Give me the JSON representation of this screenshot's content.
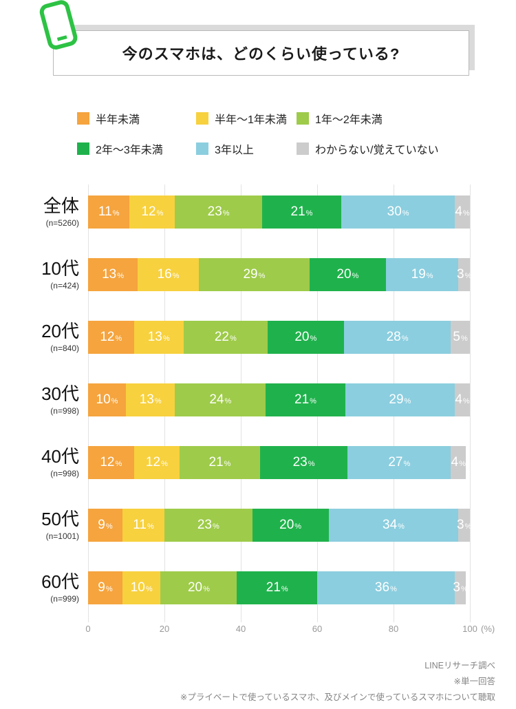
{
  "header": {
    "title": "今のスマホは、どのくらい使っている?"
  },
  "legend": [
    {
      "label": "半年未満",
      "color": "#F5A43E"
    },
    {
      "label": "半年〜1年未満",
      "color": "#F7D13E"
    },
    {
      "label": "1年〜2年未満",
      "color": "#9ECB4A"
    },
    {
      "label": "2年〜3年未満",
      "color": "#1FB24C"
    },
    {
      "label": "3年以上",
      "color": "#8BCEDF"
    },
    {
      "label": "わからない/覚えていない",
      "color": "#CCCCCC"
    }
  ],
  "chart_data": {
    "type": "bar",
    "orientation": "horizontal",
    "stacked": true,
    "title": "今のスマホは、どのくらい使っている?",
    "categories": [
      "全体",
      "10代",
      "20代",
      "30代",
      "40代",
      "50代",
      "60代"
    ],
    "sample_sizes": [
      "(n=5260)",
      "(n=424)",
      "(n=840)",
      "(n=998)",
      "(n=998)",
      "(n=1001)",
      "(n=999)"
    ],
    "series": [
      {
        "name": "半年未満",
        "color": "#F5A43E",
        "values": [
          11,
          13,
          12,
          10,
          12,
          9,
          9
        ]
      },
      {
        "name": "半年〜1年未満",
        "color": "#F7D13E",
        "values": [
          12,
          16,
          13,
          13,
          12,
          11,
          10
        ]
      },
      {
        "name": "1年〜2年未満",
        "color": "#9ECB4A",
        "values": [
          23,
          29,
          22,
          24,
          21,
          23,
          20
        ]
      },
      {
        "name": "2年〜3年未満",
        "color": "#1FB24C",
        "values": [
          21,
          20,
          20,
          21,
          23,
          20,
          21
        ]
      },
      {
        "name": "3年以上",
        "color": "#8BCEDF",
        "values": [
          30,
          19,
          28,
          29,
          27,
          34,
          36
        ]
      },
      {
        "name": "わからない/覚えていない",
        "color": "#CCCCCC",
        "values": [
          4,
          3,
          5,
          4,
          4,
          3,
          3
        ]
      }
    ],
    "value_unit": "%",
    "x_axis": {
      "ticks": [
        0,
        20,
        40,
        60,
        80,
        100
      ],
      "unit_label": "(%)",
      "range": [
        0,
        100
      ],
      "grid": true
    },
    "legend_position": "top"
  },
  "icons": {
    "phone_icon_color": "#2DC244"
  },
  "footer": {
    "lines": [
      "LINEリサーチ調べ",
      "※単一回答",
      "※プライベートで使っているスマホ、及びメインで使っているスマホについて聴取"
    ]
  }
}
